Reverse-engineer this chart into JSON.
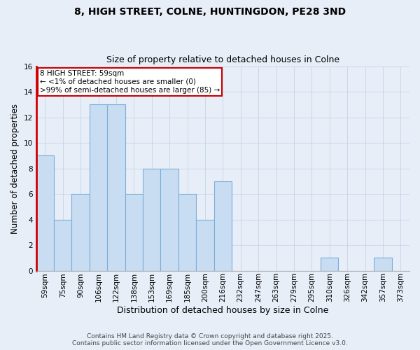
{
  "title_line1": "8, HIGH STREET, COLNE, HUNTINGDON, PE28 3ND",
  "title_line2": "Size of property relative to detached houses in Colne",
  "xlabel": "Distribution of detached houses by size in Colne",
  "ylabel": "Number of detached properties",
  "categories": [
    "59sqm",
    "75sqm",
    "90sqm",
    "106sqm",
    "122sqm",
    "138sqm",
    "153sqm",
    "169sqm",
    "185sqm",
    "200sqm",
    "216sqm",
    "232sqm",
    "247sqm",
    "263sqm",
    "279sqm",
    "295sqm",
    "310sqm",
    "326sqm",
    "342sqm",
    "357sqm",
    "373sqm"
  ],
  "values": [
    9,
    4,
    6,
    13,
    13,
    6,
    8,
    8,
    6,
    4,
    7,
    0,
    0,
    0,
    0,
    0,
    1,
    0,
    0,
    1,
    0
  ],
  "bar_color": "#c9ddf2",
  "bar_edge_color": "#7aadda",
  "highlight_color": "#cc0000",
  "ylim": [
    0,
    16
  ],
  "yticks": [
    0,
    2,
    4,
    6,
    8,
    10,
    12,
    14,
    16
  ],
  "grid_color": "#c8d8ea",
  "bg_color": "#e8eef8",
  "annotation_text": "8 HIGH STREET: 59sqm\n← <1% of detached houses are smaller (0)\n>99% of semi-detached houses are larger (85) →",
  "annotation_box_color": "#ffffff",
  "annotation_box_edge_color": "#cc0000",
  "footer_line1": "Contains HM Land Registry data © Crown copyright and database right 2025.",
  "footer_line2": "Contains public sector information licensed under the Open Government Licence v3.0.",
  "title_fontsize": 10,
  "subtitle_fontsize": 9,
  "xlabel_fontsize": 9,
  "ylabel_fontsize": 8.5,
  "tick_fontsize": 7.5,
  "annotation_fontsize": 7.5,
  "footer_fontsize": 6.5
}
